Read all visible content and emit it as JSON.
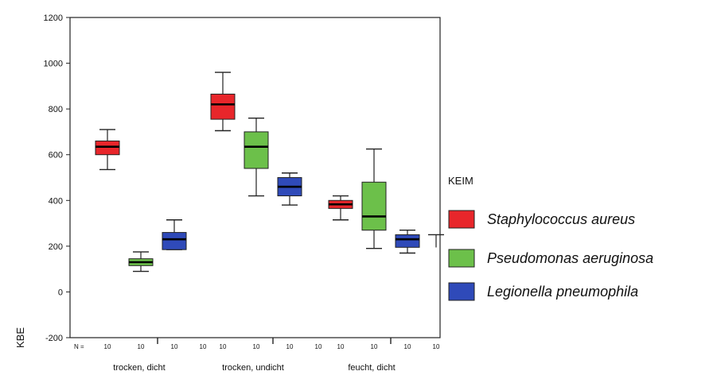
{
  "chart_data": {
    "type": "boxplot",
    "ylabel": "KBE",
    "ylim": [
      -200,
      1200
    ],
    "yticks": [
      -200,
      0,
      200,
      400,
      600,
      800,
      1000,
      1200
    ],
    "n_prefix": "N =",
    "categories": [
      "trocken, dicht",
      "trocken, undicht",
      "feucht, dicht"
    ],
    "legend_title": "KEIM",
    "series": [
      {
        "name": "Staphylococcus aureus",
        "color": "#e8262b",
        "boxes": [
          {
            "min": 535,
            "q1": 600,
            "median": 635,
            "q3": 660,
            "max": 710,
            "n": "10"
          },
          {
            "min": 705,
            "q1": 755,
            "median": 820,
            "q3": 865,
            "max": 960,
            "n": "10"
          },
          {
            "min": 315,
            "q1": 365,
            "median": 383,
            "q3": 400,
            "max": 420,
            "n": "10"
          }
        ]
      },
      {
        "name": "Pseudomonas aeruginosa",
        "color": "#6cc04a",
        "boxes": [
          {
            "min": 90,
            "q1": 115,
            "median": 130,
            "q3": 145,
            "max": 175,
            "n": "10"
          },
          {
            "min": 420,
            "q1": 540,
            "median": 635,
            "q3": 700,
            "max": 760,
            "n": "10"
          },
          {
            "min": 190,
            "q1": 270,
            "median": 330,
            "q3": 480,
            "max": 625,
            "n": "10"
          }
        ]
      },
      {
        "name": "Legionella pneumophila",
        "color": "#2f4ab9",
        "boxes": [
          {
            "min": 185,
            "q1": 185,
            "median": 230,
            "q3": 260,
            "max": 315,
            "n": "10"
          },
          {
            "min": 380,
            "q1": 420,
            "median": 460,
            "q3": 500,
            "max": 520,
            "n": "10"
          },
          {
            "min": 170,
            "q1": 195,
            "median": 230,
            "q3": 250,
            "max": 270,
            "n": "10"
          }
        ]
      }
    ],
    "extra_n_labels": [
      "10",
      "10",
      "10"
    ],
    "stray_marker": {
      "category_index": 2,
      "value": 250
    }
  }
}
